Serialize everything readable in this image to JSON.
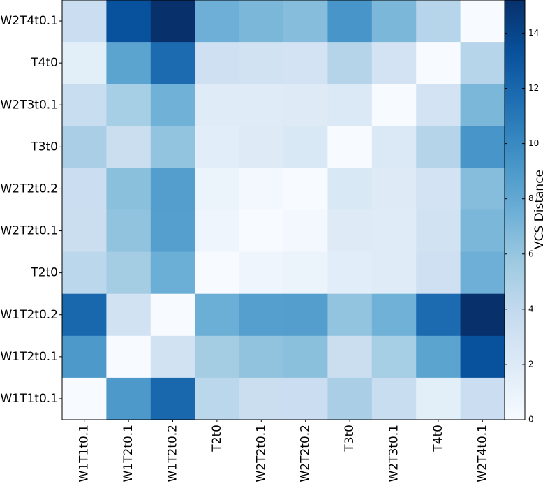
{
  "chart_data": {
    "type": "heatmap",
    "x_categories": [
      "W1T1t0.1",
      "W1T2t0.1",
      "W1T2t0.2",
      "T2t0",
      "W2T2t0.1",
      "W2T2t0.2",
      "T3t0",
      "W2T3t0.1",
      "T4t0",
      "W2T4t0.1"
    ],
    "y_categories_top_to_bottom": [
      "W2T4t0.1",
      "T4t0",
      "W2T3t0.1",
      "T3t0",
      "W2T2t0.2",
      "W2T2t0.1",
      "T2t0",
      "W1T2t0.2",
      "W1T2t0.1",
      "W1T1t0.1"
    ],
    "values_top_to_bottom": [
      [
        3.4,
        13.3,
        15.2,
        7.5,
        7.0,
        6.6,
        9.2,
        7.0,
        4.5,
        0.0
      ],
      [
        1.6,
        8.3,
        11.8,
        3.2,
        2.9,
        2.8,
        4.6,
        2.8,
        0.0,
        4.5
      ],
      [
        3.6,
        5.3,
        7.4,
        1.8,
        1.8,
        1.9,
        2.1,
        0.0,
        2.8,
        7.0
      ],
      [
        5.2,
        3.5,
        6.1,
        1.7,
        1.9,
        2.3,
        0.0,
        2.1,
        4.6,
        9.2
      ],
      [
        3.4,
        6.4,
        8.7,
        0.9,
        0.3,
        0.0,
        2.3,
        1.9,
        2.8,
        6.6
      ],
      [
        3.5,
        6.2,
        8.6,
        0.7,
        0.0,
        0.3,
        1.9,
        1.8,
        2.9,
        7.0
      ],
      [
        4.3,
        5.4,
        7.6,
        0.0,
        0.7,
        0.9,
        1.7,
        1.8,
        3.2,
        7.5
      ],
      [
        12.0,
        2.9,
        0.0,
        7.6,
        8.6,
        8.7,
        6.1,
        7.4,
        11.8,
        15.2
      ],
      [
        9.0,
        0.0,
        2.9,
        5.4,
        6.2,
        6.4,
        3.5,
        5.3,
        8.3,
        13.3
      ],
      [
        0.0,
        9.0,
        12.0,
        4.3,
        3.5,
        3.4,
        5.2,
        3.6,
        1.6,
        3.4
      ]
    ],
    "colorbar": {
      "label": "VCS Distance",
      "min": 0,
      "max": 15.2,
      "ticks": [
        "0",
        "2",
        "4",
        "6",
        "8",
        "10",
        "12",
        "14"
      ],
      "colormap": "Blues",
      "color_stops": [
        "#f7fbff",
        "#deebf7",
        "#c6dbef",
        "#9ecae1",
        "#6baed6",
        "#4292c6",
        "#2171b5",
        "#08519c",
        "#08306b"
      ]
    },
    "grid": false
  }
}
